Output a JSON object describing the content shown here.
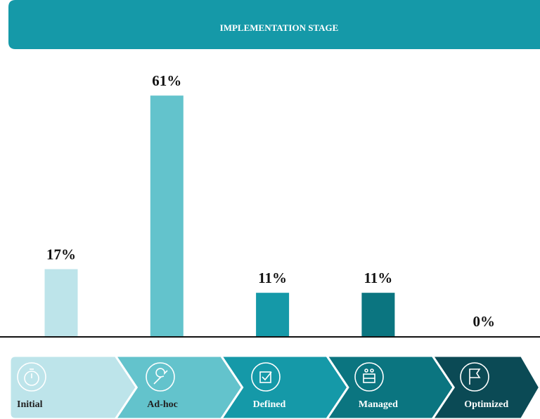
{
  "chart_data": {
    "type": "bar",
    "title": "IMPLEMENTATION STAGE",
    "categories": [
      "Initial",
      "Ad-hoc",
      "Defined",
      "Managed",
      "Optimized"
    ],
    "values": [
      17,
      61,
      11,
      11,
      0
    ],
    "value_labels": [
      "17%",
      "61%",
      "11%",
      "11%",
      "0%"
    ],
    "colors": [
      "#bde4ea",
      "#63c3cc",
      "#1599a8",
      "#0b7580",
      "#0b4a55"
    ]
  }
}
